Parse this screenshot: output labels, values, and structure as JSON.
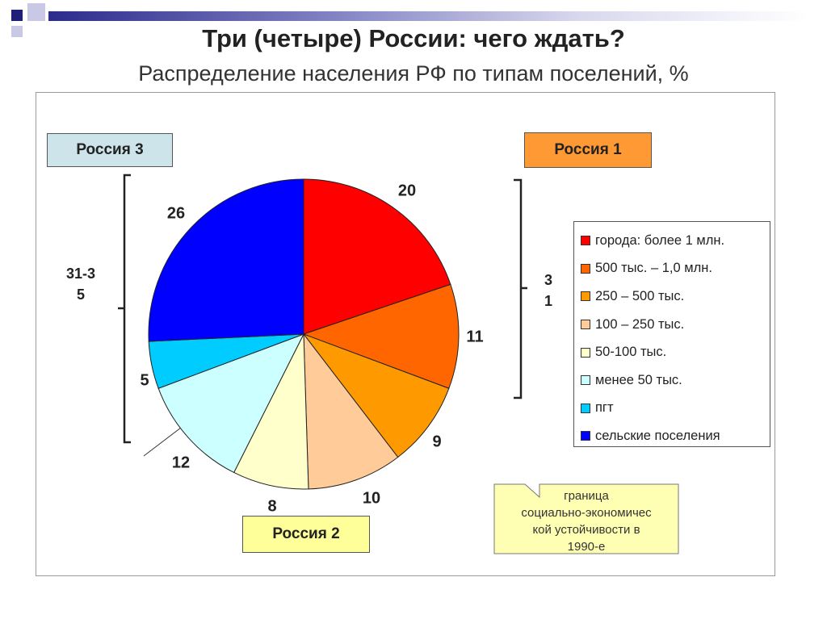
{
  "title": "Три (четыре) России: чего ждать?",
  "subtitle": "Распределение населения РФ по типам поселений, %",
  "regions": {
    "russia1": "Россия 1",
    "russia2": "Россия 2",
    "russia3": "Россия 3"
  },
  "brackets": {
    "left_label_line1": "31-3",
    "left_label_line2": "5",
    "right_label_line1": "3",
    "right_label_line2": "1"
  },
  "note": {
    "line1": "граница",
    "line2": "социально-экономичес",
    "line3": "кой устойчивости в",
    "line4": "1990-е"
  },
  "chart_data": {
    "type": "pie",
    "title": "Распределение населения РФ по типам поселений, %",
    "slices": [
      {
        "label": "города: более 1 млн.",
        "value": 20,
        "color": "#ff0000"
      },
      {
        "label": "500 тыс. – 1,0 млн.",
        "value": 11,
        "color": "#ff6600"
      },
      {
        "label": "250 – 500 тыс.",
        "value": 9,
        "color": "#ff9900"
      },
      {
        "label": "100 – 250 тыс.",
        "value": 10,
        "color": "#ffcc99"
      },
      {
        "label": "50-100 тыс.",
        "value": 8,
        "color": "#ffffcc"
      },
      {
        "label": "менее 50 тыс.",
        "value": 12,
        "color": "#ccffff"
      },
      {
        "label": "пгт",
        "value": 5,
        "color": "#00ccff"
      },
      {
        "label": "сельские поселения",
        "value": 26,
        "color": "#0000ff"
      }
    ],
    "data_labels": [
      "20",
      "11",
      "9",
      "10",
      "8",
      "12",
      "5",
      "26"
    ],
    "legend_position": "right"
  }
}
